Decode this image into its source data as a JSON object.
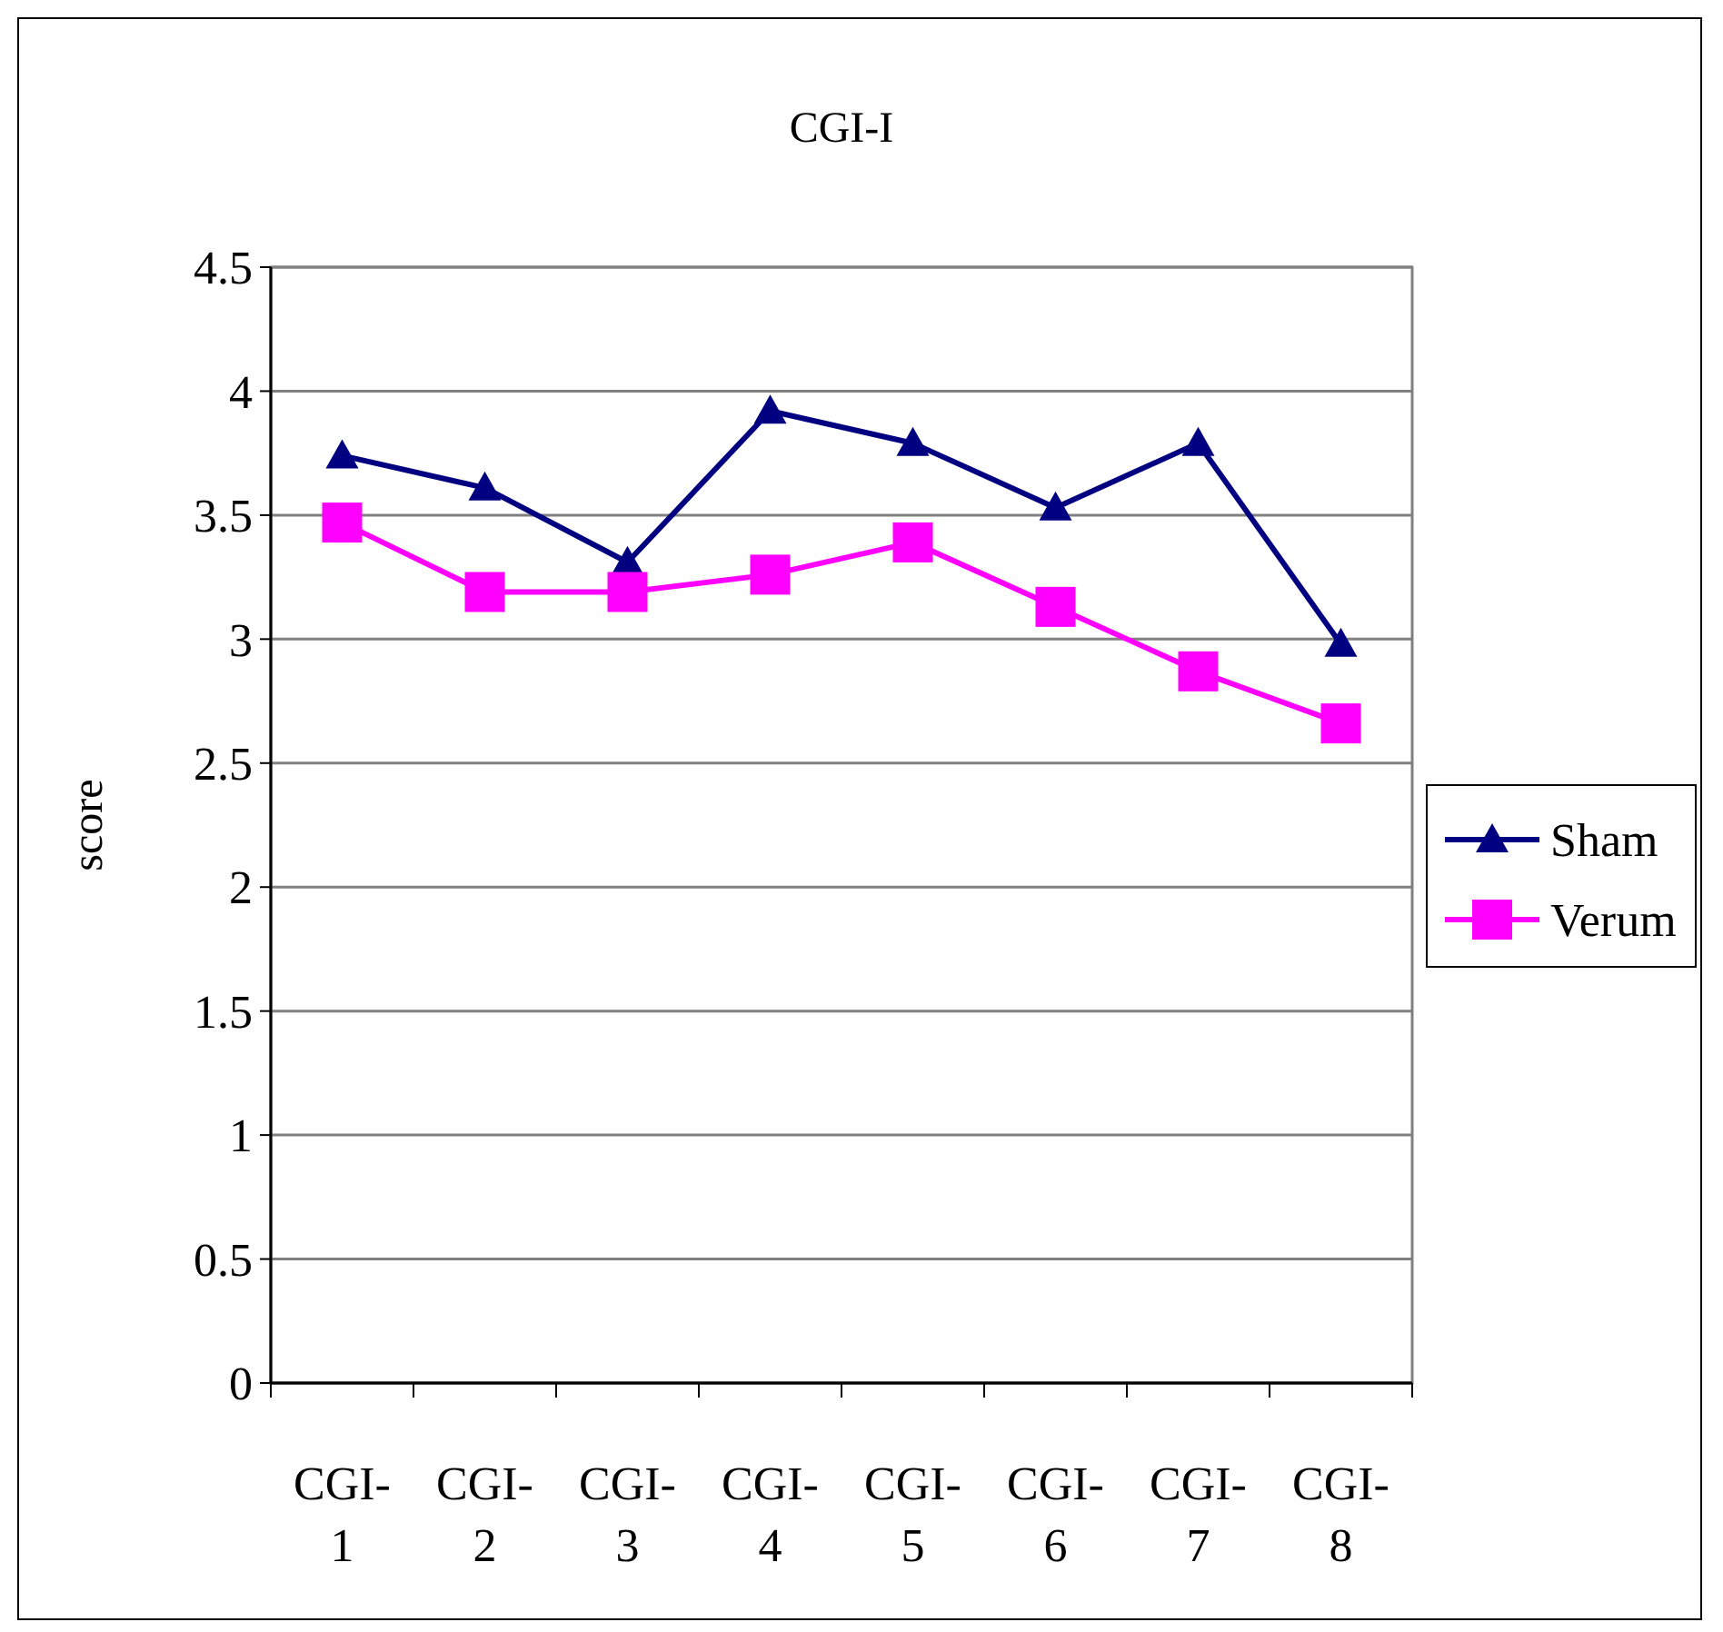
{
  "chart_data": {
    "type": "line",
    "title": "CGI-I",
    "ylabel": "score",
    "categories": [
      "CGI-1",
      "CGI-2",
      "CGI-3",
      "CGI-4",
      "CGI-5",
      "CGI-6",
      "CGI-7",
      "CGI-8"
    ],
    "series": [
      {
        "name": "Sham",
        "color": "#000080",
        "marker": "triangle",
        "values": [
          3.74,
          3.61,
          3.31,
          3.92,
          3.79,
          3.53,
          3.79,
          2.98
        ]
      },
      {
        "name": "Verum",
        "color": "#ff00ff",
        "marker": "square",
        "values": [
          3.47,
          3.19,
          3.19,
          3.26,
          3.39,
          3.13,
          2.87,
          2.66
        ]
      }
    ],
    "ylim": [
      0,
      4.5
    ],
    "yticks": [
      0,
      0.5,
      1,
      1.5,
      2,
      2.5,
      3,
      3.5,
      4,
      4.5
    ],
    "grid": "y",
    "legend": "right"
  }
}
